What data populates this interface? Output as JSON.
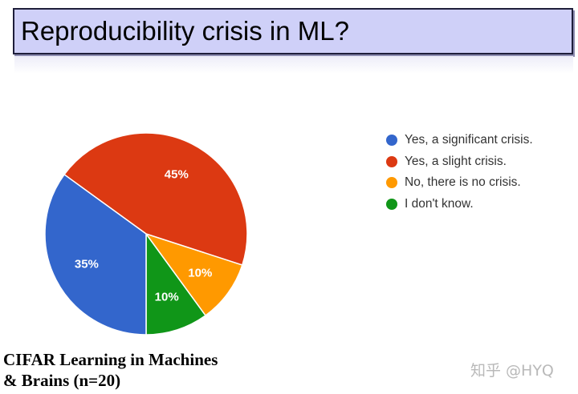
{
  "slide": {
    "title": "Reproducibility crisis in ML?",
    "caption_lines": [
      "CIFAR Learning in Machines",
      "& Brains (n=20)"
    ],
    "watermark": "知乎 @HYQ"
  },
  "chart_data": {
    "type": "pie",
    "title": "",
    "slices": [
      {
        "label": "Yes, a significant crisis.",
        "value": 35,
        "display": "35%",
        "color": "#3366cc"
      },
      {
        "label": "Yes, a slight crisis.",
        "value": 45,
        "display": "45%",
        "color": "#dc3912"
      },
      {
        "label": "No, there is no crisis.",
        "value": 10,
        "display": "10%",
        "color": "#ff9900"
      },
      {
        "label": "I don't know.",
        "value": 10,
        "display": "10%",
        "color": "#109618"
      }
    ],
    "legend_position": "right",
    "start_angle_deg": 90,
    "direction": "clockwise",
    "slice_draw_order": [
      3,
      2,
      1,
      0
    ]
  }
}
